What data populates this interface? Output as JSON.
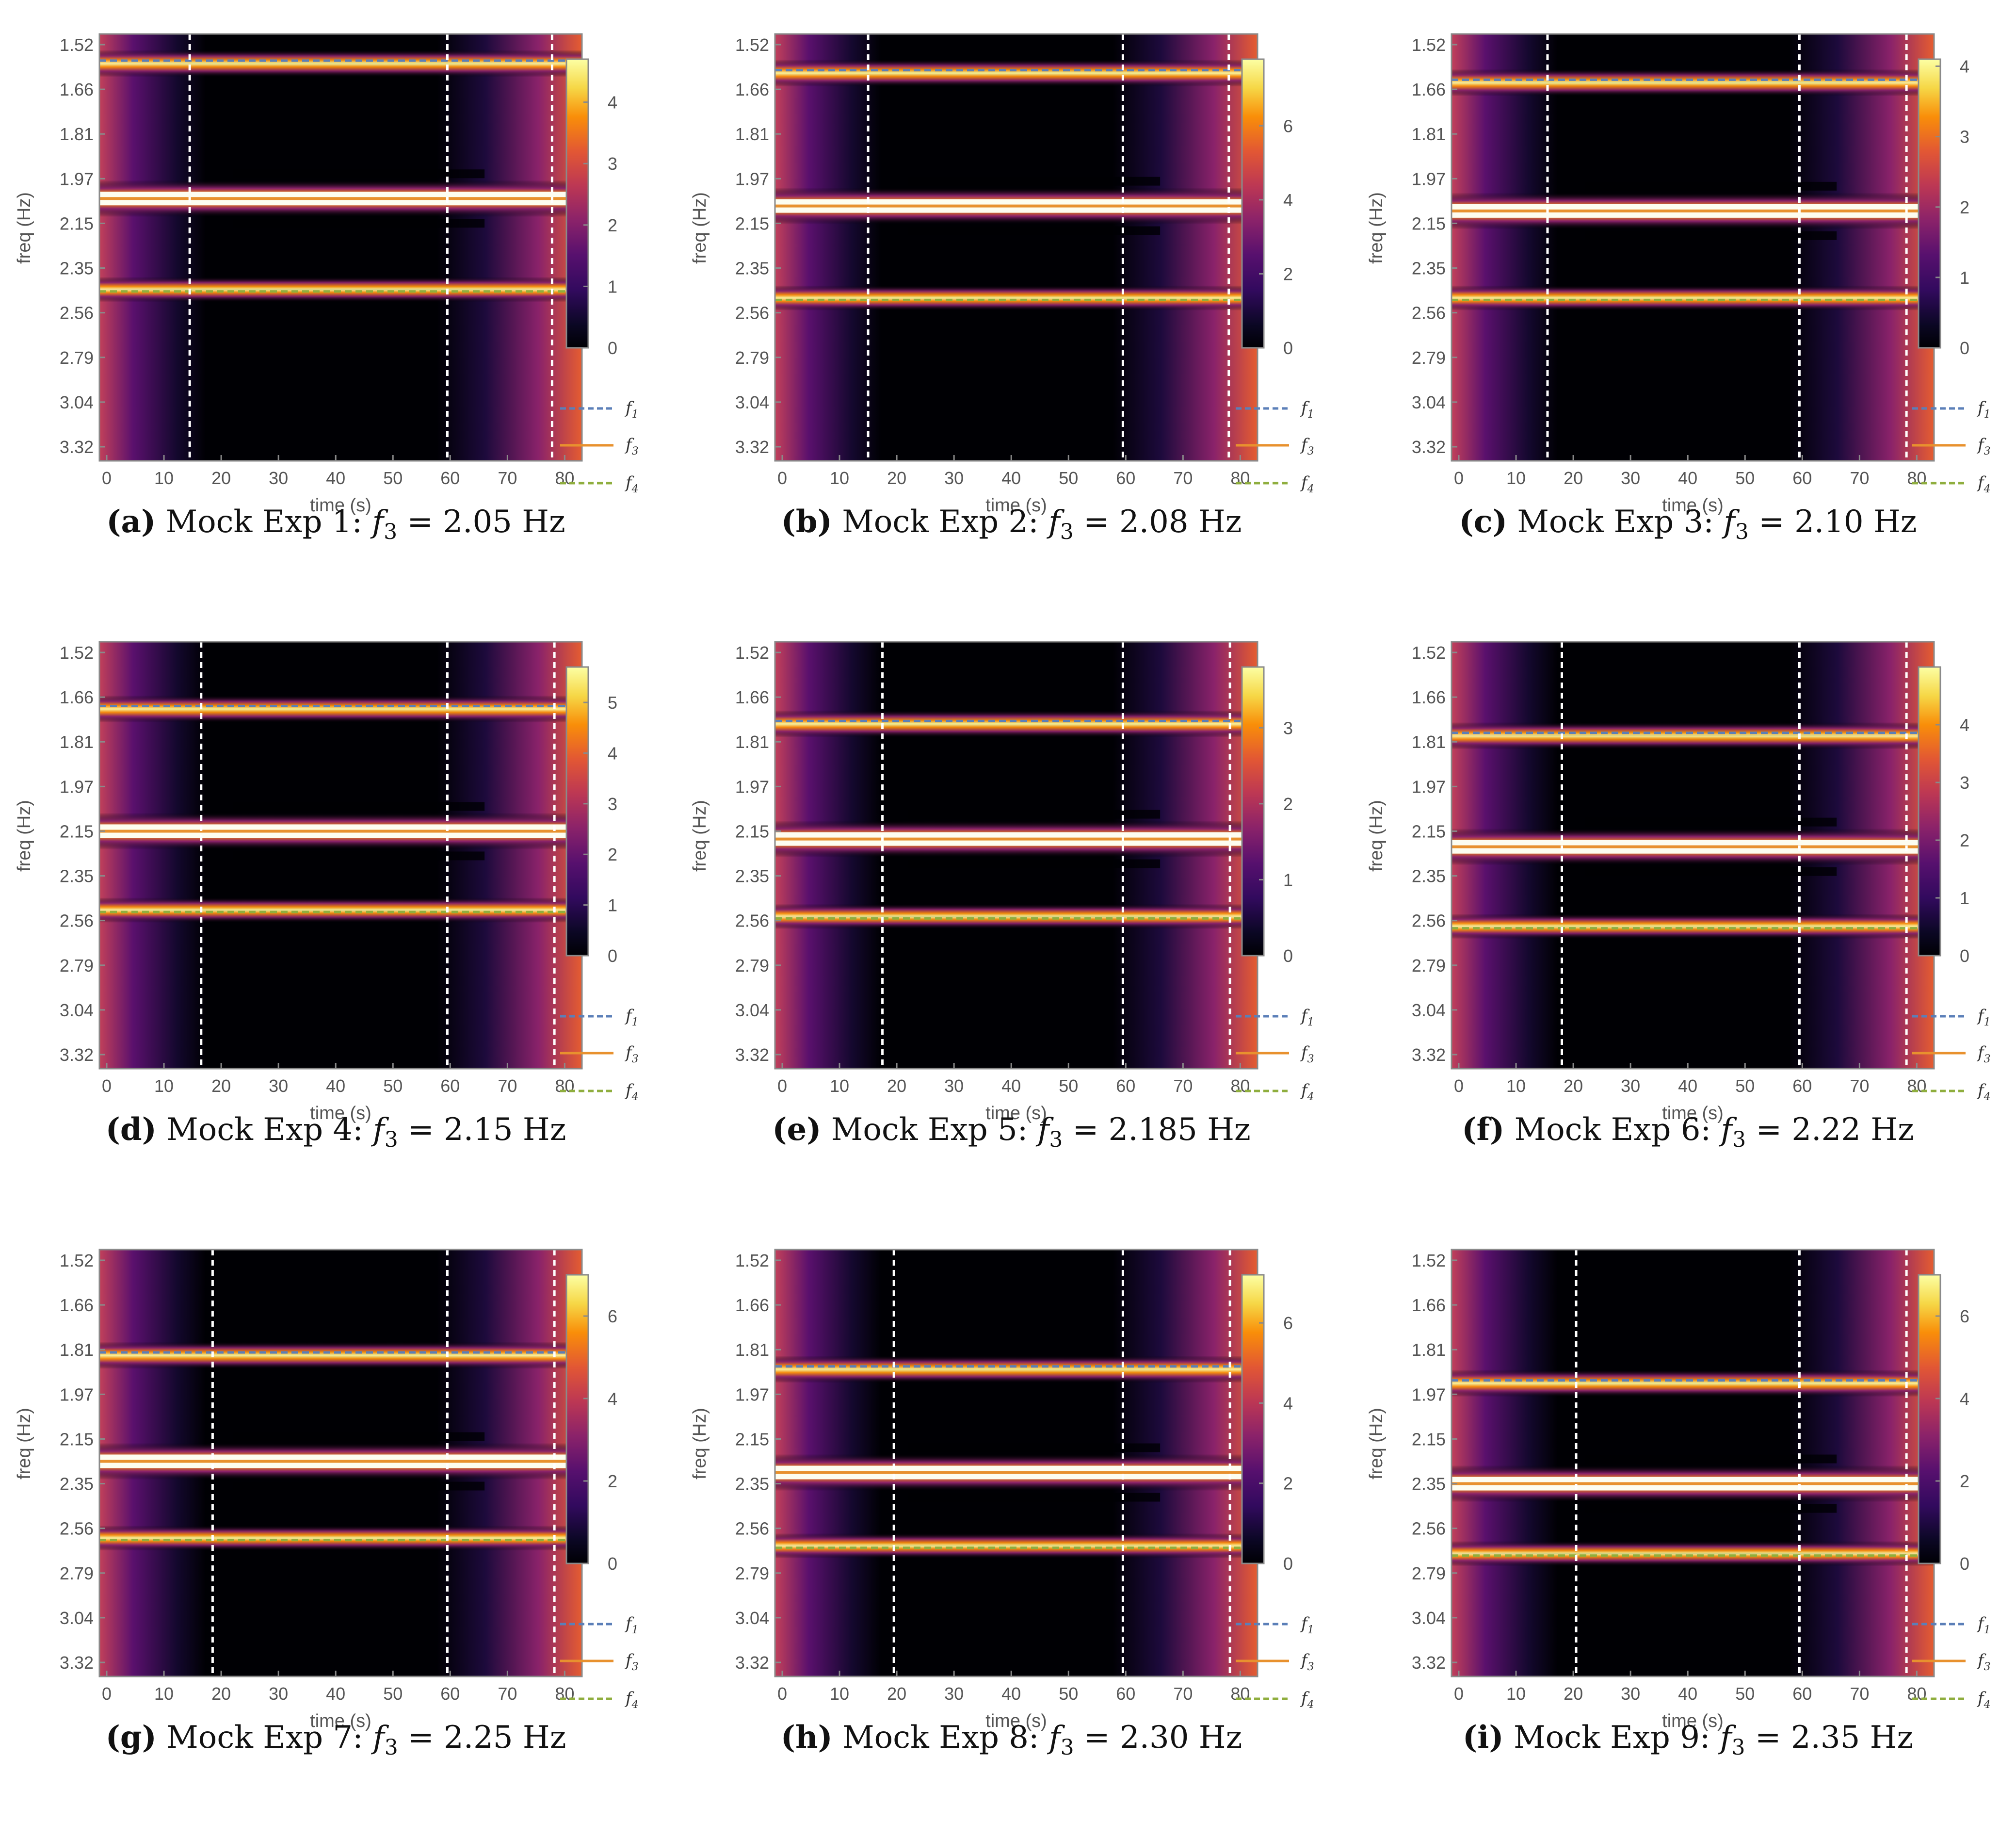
{
  "chart_data": {
    "type": "heatmap",
    "colorscale": "inferno",
    "xlabel": "time (s)",
    "ylabel": "freq (Hz)",
    "xlim": [
      0,
      82
    ],
    "x_ticks": [
      "0",
      "10",
      "20",
      "30",
      "40",
      "50",
      "60",
      "70",
      "80"
    ],
    "y_ticks": [
      "1.52",
      "1.66",
      "1.81",
      "1.97",
      "2.15",
      "2.35",
      "2.56",
      "2.79",
      "3.04",
      "3.32"
    ],
    "legend": [
      {
        "label": "f",
        "sub": "1",
        "style": "dashed",
        "color": "#5b7fb8"
      },
      {
        "label": "f",
        "sub": "3",
        "style": "solid",
        "color": "#e8912e"
      },
      {
        "label": "f",
        "sub": "4",
        "style": "dashed",
        "color": "#8fae3e"
      }
    ],
    "panels": [
      {
        "letter": "(a)",
        "title": "Mock Exp 1:",
        "var": "f",
        "sub": "3",
        "eq": "=",
        "value": "2.05 Hz",
        "f1": 1.57,
        "f3": 2.05,
        "f4": 2.46,
        "vlines": [
          14.5,
          59.5,
          77.8
        ],
        "cbar_max": 4.7,
        "cbar_ticks": [
          "0",
          "1",
          "2",
          "3",
          "4"
        ]
      },
      {
        "letter": "(b)",
        "title": "Mock Exp 2:",
        "var": "f",
        "sub": "3",
        "eq": "=",
        "value": "2.08 Hz",
        "f1": 1.6,
        "f3": 2.08,
        "f4": 2.5,
        "vlines": [
          15.0,
          59.5,
          78.0
        ],
        "cbar_max": 7.8,
        "cbar_ticks": [
          "0",
          "2",
          "4",
          "6"
        ]
      },
      {
        "letter": "(c)",
        "title": "Mock Exp 3:",
        "var": "f",
        "sub": "3",
        "eq": "=",
        "value": "2.10 Hz",
        "f1": 1.63,
        "f3": 2.1,
        "f4": 2.5,
        "vlines": [
          15.5,
          59.5,
          78.2
        ],
        "cbar_max": 4.1,
        "cbar_ticks": [
          "0",
          "1",
          "2",
          "3",
          "4"
        ]
      },
      {
        "letter": "(d)",
        "title": "Mock Exp 4:",
        "var": "f",
        "sub": "3",
        "eq": "=",
        "value": "2.15 Hz",
        "f1": 1.69,
        "f3": 2.15,
        "f4": 2.52,
        "vlines": [
          16.5,
          59.5,
          78.2
        ],
        "cbar_max": 5.7,
        "cbar_ticks": [
          "0",
          "1",
          "2",
          "3",
          "4",
          "5"
        ]
      },
      {
        "letter": "(e)",
        "title": "Mock Exp 5:",
        "var": "f",
        "sub": "3",
        "eq": "=",
        "value": "2.185 Hz",
        "f1": 1.74,
        "f3": 2.185,
        "f4": 2.55,
        "vlines": [
          17.5,
          59.5,
          78.2
        ],
        "cbar_max": 3.8,
        "cbar_ticks": [
          "0",
          "1",
          "2",
          "3"
        ]
      },
      {
        "letter": "(f)",
        "title": "Mock Exp 6:",
        "var": "f",
        "sub": "3",
        "eq": "=",
        "value": "2.22 Hz",
        "f1": 1.78,
        "f3": 2.22,
        "f4": 2.6,
        "vlines": [
          18.0,
          59.5,
          78.2
        ],
        "cbar_max": 5.0,
        "cbar_ticks": [
          "0",
          "1",
          "2",
          "3",
          "4"
        ]
      },
      {
        "letter": "(g)",
        "title": "Mock Exp 7:",
        "var": "f",
        "sub": "3",
        "eq": "=",
        "value": "2.25 Hz",
        "f1": 1.82,
        "f3": 2.25,
        "f4": 2.62,
        "vlines": [
          18.5,
          59.5,
          78.2
        ],
        "cbar_max": 7.0,
        "cbar_ticks": [
          "0",
          "2",
          "4",
          "6"
        ]
      },
      {
        "letter": "(h)",
        "title": "Mock Exp 8:",
        "var": "f",
        "sub": "3",
        "eq": "=",
        "value": "2.30 Hz",
        "f1": 1.87,
        "f3": 2.3,
        "f4": 2.66,
        "vlines": [
          19.5,
          59.5,
          78.2
        ],
        "cbar_max": 7.2,
        "cbar_ticks": [
          "0",
          "2",
          "4",
          "6"
        ]
      },
      {
        "letter": "(i)",
        "title": "Mock Exp 9:",
        "var": "f",
        "sub": "3",
        "eq": "=",
        "value": "2.35 Hz",
        "f1": 1.92,
        "f3": 2.35,
        "f4": 2.7,
        "vlines": [
          20.5,
          59.5,
          78.2
        ],
        "cbar_max": 7.0,
        "cbar_ticks": [
          "0",
          "2",
          "4",
          "6"
        ]
      }
    ]
  }
}
